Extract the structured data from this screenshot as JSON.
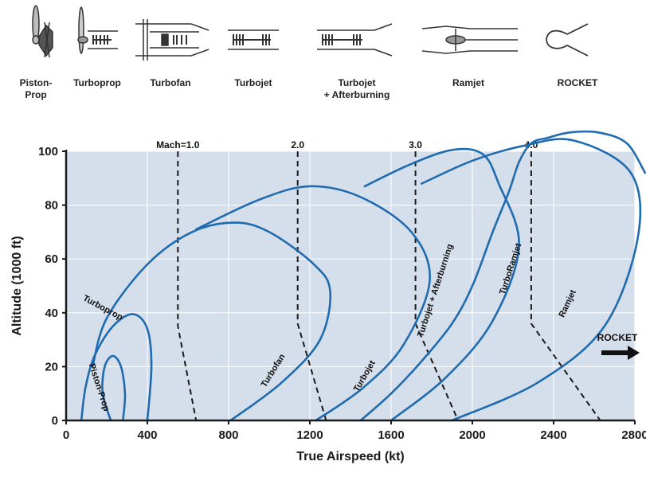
{
  "engines": [
    {
      "key": "piston_prop",
      "lines": [
        "Piston-",
        "Prop"
      ],
      "icon": "piston-prop-engine-icon"
    },
    {
      "key": "turboprop",
      "lines": [
        "Turboprop"
      ],
      "icon": "turboprop-engine-icon"
    },
    {
      "key": "turbofan",
      "lines": [
        "Turbofan"
      ],
      "icon": "turbofan-engine-icon"
    },
    {
      "key": "turbojet",
      "lines": [
        "Turbojet"
      ],
      "icon": "turbojet-engine-icon"
    },
    {
      "key": "turbojet_ab",
      "lines": [
        "Turbojet",
        "+ Afterburning"
      ],
      "icon": "afterburning-turbojet-engine-icon"
    },
    {
      "key": "ramjet",
      "lines": [
        "Ramjet"
      ],
      "icon": "ramjet-engine-icon"
    },
    {
      "key": "rocket",
      "lines": [
        "ROCKET"
      ],
      "icon": "rocket-engine-icon"
    }
  ],
  "chart_data": {
    "type": "line",
    "title": "",
    "xlabel": "True Airspeed (kt)",
    "ylabel": "Altitude (1000 ft)",
    "xlim": [
      0,
      2800
    ],
    "ylim": [
      0,
      100
    ],
    "xticks": [
      0,
      400,
      800,
      1200,
      1600,
      2000,
      2400,
      2800
    ],
    "yticks": [
      0,
      20,
      40,
      60,
      80,
      100
    ],
    "grid": true,
    "colors": {
      "plot_bg": "#d5deeb",
      "grid": "#ffffff",
      "envelope": "#1f6bb0",
      "mach": "#1a1a1a",
      "axis": "#1a1a1a"
    },
    "mach_lines": [
      {
        "label": "Mach=1.0",
        "points": [
          [
            550,
            100
          ],
          [
            550,
            35
          ],
          [
            640,
            0
          ]
        ]
      },
      {
        "label": "2.0",
        "points": [
          [
            1140,
            100
          ],
          [
            1140,
            36
          ],
          [
            1280,
            0
          ]
        ]
      },
      {
        "label": "3.0",
        "points": [
          [
            1720,
            100
          ],
          [
            1720,
            36
          ],
          [
            1930,
            0
          ]
        ]
      },
      {
        "label": "4.0",
        "points": [
          [
            2290,
            100
          ],
          [
            2290,
            36
          ],
          [
            2630,
            0
          ]
        ]
      }
    ],
    "series": [
      {
        "name": "Piston-Prop",
        "points": [
          [
            220,
            0
          ],
          [
            180,
            10
          ],
          [
            190,
            20
          ],
          [
            230,
            24
          ],
          [
            270,
            20
          ],
          [
            290,
            10
          ],
          [
            280,
            0
          ]
        ]
      },
      {
        "name": "Turboprop",
        "points": [
          [
            75,
            0
          ],
          [
            95,
            12
          ],
          [
            140,
            24
          ],
          [
            230,
            35
          ],
          [
            330,
            39.5
          ],
          [
            400,
            34
          ],
          [
            420,
            20
          ],
          [
            400,
            0
          ]
        ]
      },
      {
        "name": "Turbofan",
        "points": [
          [
            130,
            20
          ],
          [
            200,
            38
          ],
          [
            400,
            58
          ],
          [
            620,
            70
          ],
          [
            830,
            73.5
          ],
          [
            1000,
            70
          ],
          [
            1220,
            58
          ],
          [
            1300,
            48
          ],
          [
            1250,
            30
          ],
          [
            1060,
            14
          ],
          [
            810,
            0
          ]
        ]
      },
      {
        "name": "Turbojet",
        "points": [
          [
            640,
            71
          ],
          [
            950,
            82
          ],
          [
            1200,
            87
          ],
          [
            1450,
            83
          ],
          [
            1700,
            70
          ],
          [
            1790,
            52
          ],
          [
            1660,
            28
          ],
          [
            1460,
            12
          ],
          [
            1230,
            0
          ]
        ]
      },
      {
        "name": "Turbojet + Afterburning",
        "points": [
          [
            1470,
            87
          ],
          [
            1690,
            95
          ],
          [
            1900,
            100.5
          ],
          [
            2050,
            99
          ],
          [
            2130,
            88
          ],
          [
            2230,
            65
          ],
          [
            2100,
            37
          ],
          [
            1870,
            16
          ],
          [
            1600,
            0
          ]
        ]
      },
      {
        "name": "TurboRamjet",
        "points": [
          [
            1750,
            88
          ],
          [
            2000,
            96.5
          ],
          [
            2250,
            102
          ],
          [
            2500,
            104
          ],
          [
            2780,
            92
          ],
          [
            2815,
            68
          ],
          [
            2650,
            35
          ],
          [
            2320,
            14
          ],
          [
            1900,
            0
          ]
        ]
      },
      {
        "name": "Ramjet",
        "points": [
          [
            1450,
            0
          ],
          [
            1600,
            10
          ],
          [
            1750,
            22
          ],
          [
            1900,
            36
          ],
          [
            2000,
            50
          ],
          [
            2100,
            70
          ],
          [
            2180,
            85
          ],
          [
            2230,
            96
          ],
          [
            2290,
            103
          ],
          [
            2370,
            105
          ],
          [
            2480,
            107
          ],
          [
            2620,
            107
          ],
          [
            2760,
            103
          ],
          [
            2850,
            92
          ]
        ]
      }
    ],
    "curve_labels": [
      "Piston-Prop",
      "Turboprop",
      "Turbofan",
      "Turbojet",
      "Turbojet + Afterburning",
      "TurboRamjet",
      "Ramjet"
    ],
    "rocket_label": "ROCKET"
  }
}
